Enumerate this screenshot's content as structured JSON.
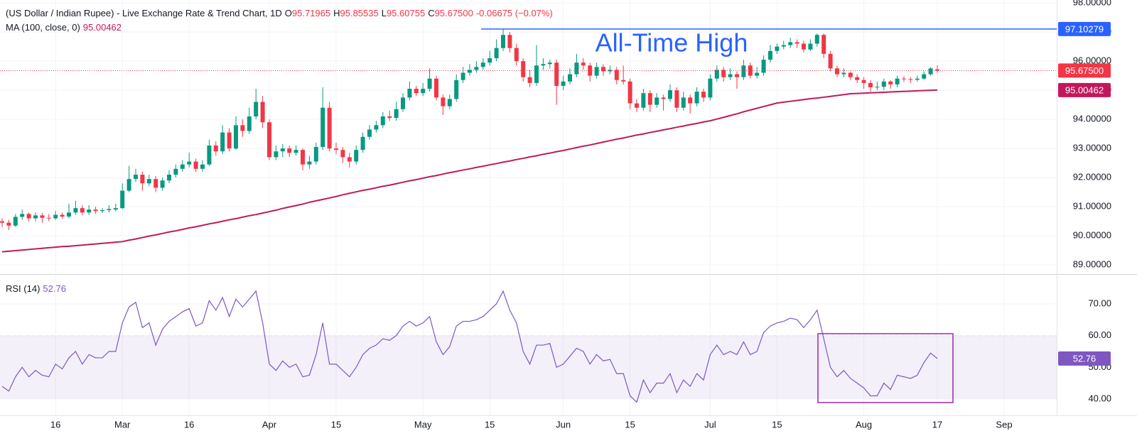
{
  "chart_data": [
    {
      "type": "candlestick",
      "title": "(US Dollar / Indian Rupee) - Live Exchange Rate & Trend Chart, 1D",
      "ohlc_legend": [
        {
          "key": "O",
          "text": "95.71965"
        },
        {
          "key": "H",
          "text": "95.85535"
        },
        {
          "key": "L",
          "text": "95.60755"
        },
        {
          "key": "C",
          "text": "95.67500"
        },
        {
          "text": "-0.06675 (−0.07%)"
        }
      ],
      "categories": [
        null,
        null,
        null,
        null,
        null,
        null,
        null,
        null,
        "16",
        null,
        null,
        null,
        null,
        null,
        null,
        null,
        null,
        null,
        "Mar",
        null,
        null,
        null,
        null,
        null,
        null,
        null,
        null,
        null,
        "16",
        null,
        null,
        null,
        null,
        null,
        null,
        null,
        null,
        null,
        null,
        null,
        "Apr",
        null,
        null,
        null,
        null,
        null,
        null,
        null,
        null,
        null,
        "15",
        null,
        null,
        null,
        null,
        null,
        null,
        null,
        null,
        null,
        null,
        null,
        null,
        "May",
        null,
        null,
        null,
        null,
        null,
        null,
        null,
        null,
        null,
        "15",
        null,
        null,
        null,
        null,
        null,
        null,
        null,
        null,
        null,
        null,
        "Jun",
        null,
        null,
        null,
        null,
        null,
        null,
        null,
        null,
        null,
        "15",
        null,
        null,
        null,
        null,
        null,
        null,
        null,
        null,
        null,
        null,
        null,
        "Jul",
        null,
        null,
        null,
        null,
        null,
        null,
        null,
        null,
        null,
        "15",
        null,
        null,
        null,
        null,
        null,
        null,
        null,
        null,
        null,
        null,
        null,
        null,
        "Aug",
        null,
        null,
        null,
        null,
        null,
        null,
        null,
        null,
        null,
        null,
        "17",
        null,
        null,
        null,
        null,
        null,
        null,
        null,
        null,
        null,
        "Sep"
      ],
      "open": [
        90.5,
        90.45,
        90.35,
        90.65,
        90.75,
        90.6,
        90.7,
        90.62,
        90.6,
        90.72,
        90.66,
        90.8,
        90.95,
        90.8,
        90.9,
        90.85,
        90.88,
        90.9,
        90.95,
        91.55,
        91.95,
        92.1,
        91.8,
        91.95,
        91.65,
        91.9,
        92.1,
        92.3,
        92.45,
        92.55,
        92.3,
        92.45,
        93.1,
        92.9,
        93.55,
        93.0,
        93.8,
        93.6,
        94.1,
        94.6,
        93.9,
        92.7,
        92.9,
        93.0,
        92.85,
        92.95,
        92.45,
        92.55,
        93.05,
        94.4,
        93.0,
        92.95,
        92.7,
        92.55,
        92.95,
        93.4,
        93.65,
        93.8,
        94.1,
        94.05,
        94.35,
        94.75,
        95.05,
        94.9,
        95.05,
        95.4,
        94.75,
        94.45,
        94.7,
        95.35,
        95.6,
        95.7,
        95.8,
        95.95,
        96.1,
        96.45,
        96.9,
        96.45,
        96.0,
        95.45,
        95.25,
        95.85,
        95.9,
        95.95,
        95.15,
        95.3,
        95.55,
        95.95,
        95.85,
        95.5,
        95.8,
        95.65,
        95.7,
        95.35,
        95.3,
        94.55,
        94.4,
        94.9,
        94.5,
        94.75,
        94.7,
        95.0,
        94.4,
        94.75,
        94.55,
        94.95,
        94.75,
        95.4,
        95.7,
        95.45,
        95.55,
        95.45,
        95.85,
        95.5,
        95.6,
        96.05,
        96.35,
        96.5,
        96.55,
        96.65,
        96.6,
        96.4,
        96.6,
        96.9,
        96.25,
        95.75,
        95.55,
        95.6,
        95.45,
        95.35,
        95.25,
        95.1,
        95.12,
        95.3,
        95.2,
        95.4,
        95.38,
        95.36,
        95.4,
        95.55,
        95.71965,
        null,
        null,
        null,
        null,
        null,
        null,
        null,
        null,
        null,
        null
      ],
      "high": [
        90.6,
        90.55,
        90.75,
        90.9,
        90.8,
        90.8,
        90.78,
        90.75,
        90.85,
        90.8,
        91.1,
        91.2,
        91.05,
        91.05,
        91.0,
        90.95,
        91.05,
        91.1,
        91.8,
        92.4,
        92.3,
        92.2,
        92.1,
        92.05,
        92.0,
        92.25,
        92.45,
        92.6,
        92.85,
        92.65,
        92.6,
        93.3,
        93.25,
        93.8,
        93.7,
        94.1,
        94.0,
        94.4,
        95.05,
        94.8,
        94.0,
        93.1,
        93.15,
        93.1,
        93.1,
        93.0,
        92.75,
        93.2,
        95.1,
        94.6,
        93.2,
        93.05,
        92.85,
        93.1,
        93.55,
        93.8,
        93.95,
        94.25,
        94.3,
        94.6,
        94.9,
        95.3,
        95.15,
        95.25,
        95.75,
        95.5,
        94.85,
        94.85,
        95.55,
        95.8,
        95.9,
        96.0,
        96.1,
        96.35,
        96.75,
        97.1,
        97.0,
        96.6,
        96.1,
        95.7,
        96.55,
        96.1,
        96.05,
        96.05,
        95.5,
        95.75,
        96.25,
        96.1,
        95.95,
        95.95,
        95.9,
        95.85,
        95.8,
        95.85,
        95.4,
        94.7,
        95.05,
        95.0,
        94.9,
        94.85,
        95.2,
        95.1,
        94.95,
        94.85,
        95.1,
        95.05,
        95.55,
        95.85,
        95.8,
        95.75,
        95.65,
        96.05,
        95.95,
        95.8,
        96.2,
        96.55,
        96.6,
        96.7,
        96.8,
        96.75,
        96.7,
        96.75,
        96.95,
        96.95,
        96.35,
        95.85,
        95.75,
        95.65,
        95.55,
        95.45,
        95.35,
        95.3,
        95.4,
        95.35,
        95.5,
        95.48,
        95.45,
        95.5,
        95.65,
        95.8,
        95.85535,
        null,
        null,
        null,
        null,
        null,
        null,
        null,
        null,
        null,
        null
      ],
      "low": [
        90.3,
        90.2,
        90.3,
        90.55,
        90.5,
        90.5,
        90.45,
        90.5,
        90.55,
        90.58,
        90.6,
        90.72,
        90.7,
        90.72,
        90.75,
        90.78,
        90.8,
        90.85,
        90.92,
        91.5,
        91.85,
        91.55,
        91.7,
        91.5,
        91.55,
        91.8,
        92.0,
        92.2,
        92.35,
        92.2,
        92.2,
        92.4,
        92.75,
        92.8,
        92.9,
        92.95,
        93.4,
        93.5,
        94.0,
        93.7,
        92.6,
        92.6,
        92.7,
        92.7,
        92.75,
        92.25,
        92.3,
        92.45,
        92.95,
        92.9,
        92.8,
        92.5,
        92.35,
        92.45,
        92.85,
        93.3,
        93.55,
        93.7,
        93.95,
        93.95,
        94.25,
        94.65,
        94.8,
        94.8,
        94.95,
        94.65,
        94.15,
        94.35,
        94.6,
        95.25,
        95.5,
        95.6,
        95.7,
        95.85,
        96.0,
        96.35,
        96.3,
        95.85,
        95.3,
        95.1,
        95.15,
        95.7,
        95.75,
        94.5,
        95.0,
        95.2,
        95.45,
        95.7,
        95.3,
        95.4,
        95.5,
        95.55,
        95.2,
        95.2,
        94.35,
        94.25,
        94.3,
        94.25,
        94.4,
        94.3,
        94.6,
        94.25,
        94.3,
        94.2,
        94.45,
        94.6,
        94.65,
        95.3,
        95.3,
        95.35,
        95.05,
        95.35,
        95.4,
        95.4,
        95.5,
        95.95,
        96.25,
        96.4,
        96.45,
        96.45,
        96.3,
        96.35,
        96.5,
        96.1,
        95.65,
        95.45,
        95.45,
        95.35,
        95.25,
        95.05,
        94.95,
        95.0,
        95.0,
        95.05,
        95.1,
        95.28,
        95.25,
        95.3,
        95.35,
        95.5,
        95.60755,
        null,
        null,
        null,
        null,
        null,
        null,
        null,
        null,
        null,
        null
      ],
      "close": [
        90.45,
        90.35,
        90.65,
        90.75,
        90.6,
        90.7,
        90.62,
        90.6,
        90.72,
        90.66,
        90.8,
        90.95,
        90.8,
        90.9,
        90.85,
        90.88,
        90.92,
        90.95,
        91.55,
        91.95,
        92.1,
        91.8,
        91.95,
        91.65,
        91.9,
        92.1,
        92.3,
        92.45,
        92.55,
        92.3,
        92.45,
        93.1,
        92.9,
        93.55,
        93.0,
        93.8,
        93.6,
        94.1,
        94.6,
        93.9,
        92.7,
        92.9,
        93.0,
        92.85,
        92.95,
        92.45,
        92.55,
        93.05,
        94.4,
        93.0,
        92.95,
        92.7,
        92.55,
        92.95,
        93.4,
        93.65,
        93.8,
        94.1,
        94.05,
        94.35,
        94.75,
        95.05,
        94.9,
        95.05,
        95.4,
        94.75,
        94.45,
        94.7,
        95.35,
        95.6,
        95.7,
        95.8,
        95.95,
        96.1,
        96.45,
        96.9,
        96.45,
        96.0,
        95.45,
        95.25,
        95.85,
        95.9,
        95.95,
        95.15,
        95.3,
        95.55,
        95.95,
        95.85,
        95.5,
        95.8,
        95.65,
        95.7,
        95.35,
        95.3,
        94.55,
        94.4,
        94.9,
        94.5,
        94.75,
        94.7,
        95.0,
        94.4,
        94.75,
        94.55,
        94.95,
        94.75,
        95.4,
        95.7,
        95.45,
        95.55,
        95.45,
        95.85,
        95.5,
        95.6,
        96.05,
        96.35,
        96.5,
        96.55,
        96.65,
        96.6,
        96.4,
        96.6,
        96.9,
        96.25,
        95.75,
        95.55,
        95.6,
        95.45,
        95.35,
        95.25,
        95.1,
        95.12,
        95.3,
        95.2,
        95.4,
        95.38,
        95.36,
        95.4,
        95.55,
        95.75,
        95.675,
        null,
        null,
        null,
        null,
        null,
        null,
        null,
        null,
        null,
        null
      ],
      "up_color": "#089981",
      "down_color": "#f23645",
      "overlays": [
        {
          "name": "MA (100, close, 0)",
          "color": "#c2185b",
          "values": [
            89.45,
            89.47,
            89.49,
            89.51,
            89.53,
            89.55,
            89.57,
            89.59,
            89.61,
            89.63,
            89.64,
            89.66,
            89.68,
            89.7,
            89.72,
            89.74,
            89.76,
            89.78,
            89.8,
            89.85,
            89.89,
            89.94,
            89.99,
            90.03,
            90.08,
            90.13,
            90.17,
            90.22,
            90.27,
            90.31,
            90.36,
            90.41,
            90.45,
            90.5,
            90.55,
            90.59,
            90.64,
            90.69,
            90.73,
            90.78,
            90.83,
            90.88,
            90.94,
            90.99,
            91.04,
            91.09,
            91.15,
            91.2,
            91.25,
            91.3,
            91.35,
            91.41,
            91.46,
            91.51,
            91.56,
            91.6,
            91.65,
            91.7,
            91.74,
            91.79,
            91.84,
            91.89,
            91.93,
            91.98,
            92.03,
            92.07,
            92.12,
            92.17,
            92.21,
            92.26,
            92.3,
            92.35,
            92.39,
            92.44,
            92.48,
            92.53,
            92.57,
            92.62,
            92.66,
            92.71,
            92.75,
            92.8,
            92.84,
            92.89,
            92.93,
            92.98,
            93.03,
            93.08,
            93.12,
            93.17,
            93.22,
            93.27,
            93.32,
            93.36,
            93.41,
            93.46,
            93.5,
            93.55,
            93.59,
            93.64,
            93.68,
            93.73,
            93.77,
            93.82,
            93.86,
            93.91,
            93.95,
            94.01,
            94.07,
            94.13,
            94.19,
            94.26,
            94.32,
            94.38,
            94.44,
            94.5,
            94.56,
            94.59,
            94.62,
            94.65,
            94.68,
            94.71,
            94.73,
            94.76,
            94.79,
            94.82,
            94.85,
            94.88,
            94.89,
            94.9,
            94.91,
            94.92,
            94.93,
            94.94,
            94.95,
            94.96,
            94.97,
            94.98,
            94.99,
            95.0,
            95.00462,
            null,
            null,
            null,
            null,
            null,
            null,
            null,
            null,
            null,
            null
          ]
        }
      ],
      "last_price": {
        "value": 95.675,
        "label": "95.67500"
      },
      "annotations": [
        {
          "text": "All-Time High",
          "level": 97.10279,
          "color": "#2962ff"
        }
      ],
      "ylim": [
        88.71,
        98.1
      ],
      "yticks": [
        {
          "value": 89,
          "label": "89.00000"
        },
        {
          "value": 90,
          "label": "90.00000"
        },
        {
          "value": 91,
          "label": "91.00000"
        },
        {
          "value": 92,
          "label": "92.00000"
        },
        {
          "value": 93,
          "label": "93.00000"
        },
        {
          "value": 94,
          "label": "94.00000"
        },
        {
          "value": 95,
          "label": "95.00000"
        },
        {
          "value": 96,
          "label": "96.00000"
        },
        {
          "value": 97,
          "label": "97.00000"
        },
        {
          "value": 98,
          "label": "98.00000"
        }
      ],
      "grid": true
    },
    {
      "type": "line",
      "series": [
        {
          "name": "RSI (14)",
          "color": "#7e57c2",
          "values": [
            44,
            42.5,
            47,
            50,
            47,
            49,
            47.5,
            47,
            51,
            49.5,
            53,
            55,
            51,
            54,
            53,
            53,
            55,
            55,
            64,
            69,
            70.5,
            62.5,
            64,
            57,
            62,
            64.5,
            66,
            67.5,
            68.5,
            63,
            64,
            71,
            68,
            72,
            66,
            71.5,
            69,
            71.5,
            74,
            64,
            51,
            49,
            52,
            50,
            51,
            47,
            47.5,
            54,
            64,
            51,
            51,
            49,
            47,
            50,
            54,
            56,
            57,
            59,
            58.5,
            60,
            63,
            64.5,
            63,
            64,
            66,
            58,
            54,
            56.5,
            63,
            64.5,
            64.5,
            65,
            66,
            68,
            70,
            74,
            68,
            64,
            55,
            51,
            57,
            57,
            57.5,
            50,
            51,
            53.5,
            56,
            55,
            51,
            54,
            52,
            52.5,
            48,
            48,
            41,
            39,
            46,
            42,
            45,
            45,
            48,
            42,
            46,
            44,
            48,
            46,
            54,
            57,
            54,
            55,
            54,
            58,
            54,
            55,
            61,
            63,
            64,
            64.5,
            65.5,
            65,
            62.5,
            65,
            68,
            59,
            50,
            47,
            49,
            46.5,
            45,
            43.5,
            41,
            41,
            45,
            43,
            47.5,
            47,
            46.5,
            47.5,
            51.5,
            54.5,
            52.76,
            null,
            null,
            null,
            null,
            null,
            null,
            null,
            null,
            null,
            null
          ]
        }
      ],
      "band": [
        40,
        60
      ],
      "band_color": "#7e57c2",
      "ylim": [
        34.85,
        78.95
      ],
      "yticks": [
        {
          "value": 40,
          "label": "40.00"
        },
        {
          "value": 50,
          "label": "50.00"
        },
        {
          "value": 60,
          "label": "60.00"
        },
        {
          "value": 70,
          "label": "70.00"
        }
      ],
      "grid": true
    }
  ]
}
